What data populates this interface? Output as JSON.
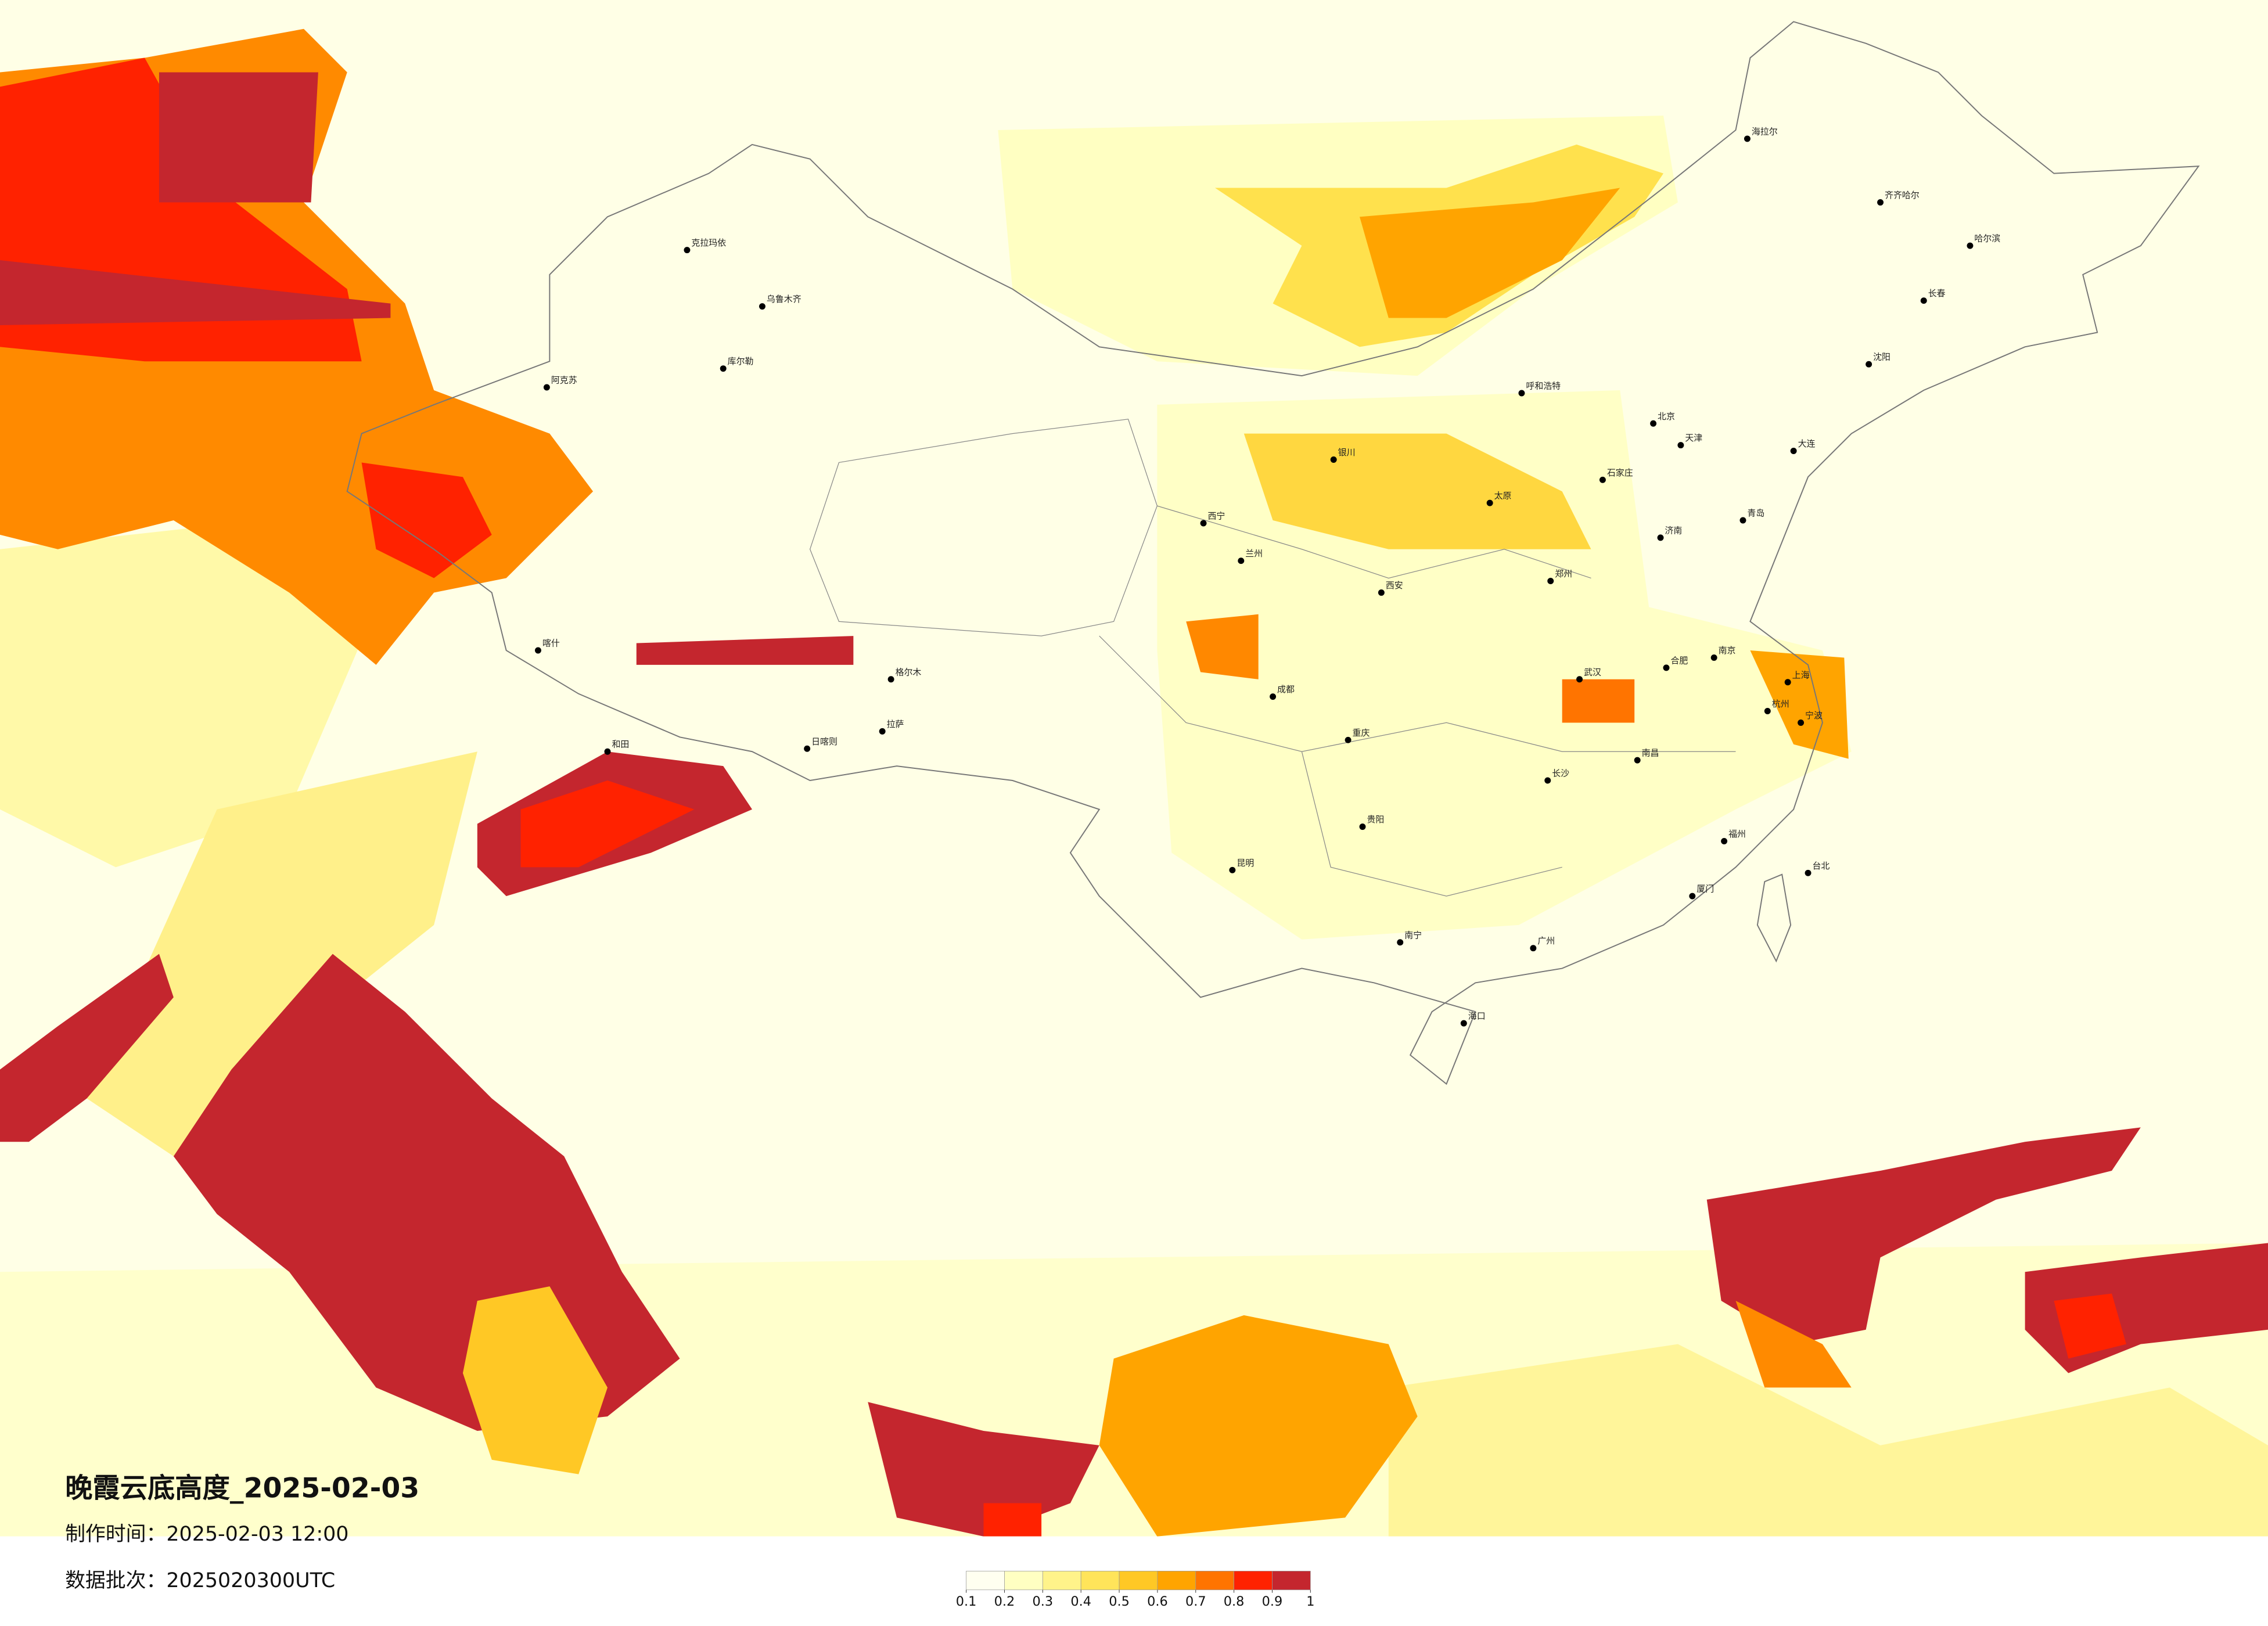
{
  "title": "晚霞云底高度_2025-02-03",
  "made_time": "制作时间：2025-02-03 12:00",
  "data_batch": "数据批次：2025020300UTC",
  "colorbar": {
    "ticks": [
      0.1,
      0.2,
      0.3,
      0.4,
      0.5,
      0.6,
      0.7,
      0.8,
      0.9,
      1
    ],
    "colors": [
      "#fffff0",
      "#ffffc2",
      "#fff38a",
      "#ffe45a",
      "#ffc825",
      "#ffa400",
      "#ff7400",
      "#ff2200",
      "#c4262e"
    ]
  },
  "cities": [
    "克拉玛依",
    "乌鲁木齐",
    "库尔勒",
    "阿克苏",
    "喀什",
    "和田",
    "拉萨",
    "日喀则",
    "格尔木",
    "西宁",
    "兰州",
    "银川",
    "呼和浩特",
    "北京",
    "天津",
    "石家庄",
    "太原",
    "济南",
    "郑州",
    "西安",
    "成都",
    "重庆",
    "武汉",
    "合肥",
    "南京",
    "上海",
    "杭州",
    "南昌",
    "长沙",
    "福州",
    "台北",
    "贵阳",
    "昆明",
    "南宁",
    "广州",
    "海口",
    "沈阳",
    "长春",
    "哈尔滨",
    "海拉尔",
    "齐齐哈尔",
    "大连",
    "青岛",
    "宁波",
    "厦门"
  ]
}
